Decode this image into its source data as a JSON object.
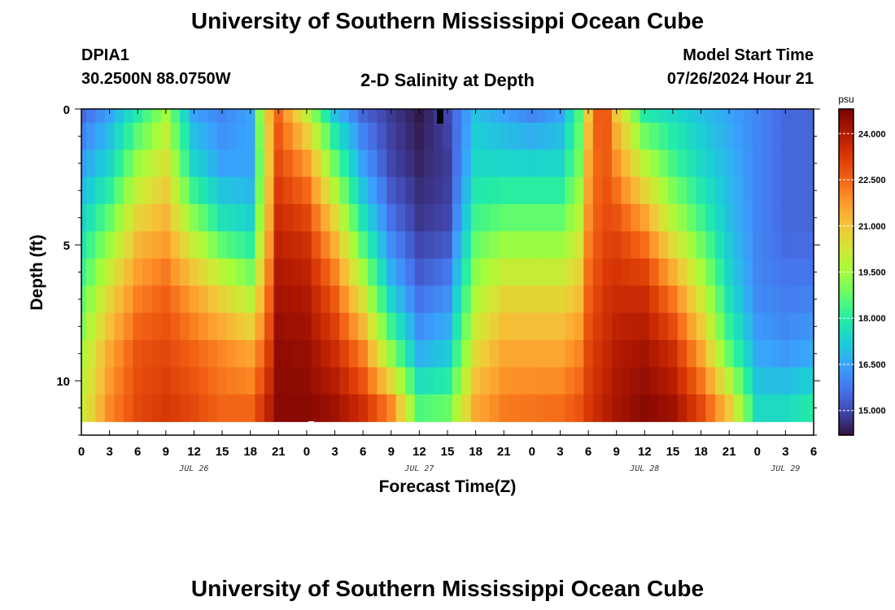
{
  "page": {
    "title": "University of Southern Mississippi Ocean Cube",
    "footer_title": "University of Southern Mississippi Ocean Cube",
    "station": "DPIA1",
    "coords": "30.2500N  88.0750W",
    "subtitle": "2-D Salinity at Depth",
    "model_start_label": "Model Start Time",
    "model_start_value": "07/26/2024 Hour 21"
  },
  "chart_data": {
    "type": "heatmap",
    "title": "2-D Salinity at Depth",
    "xlabel": "Forecast Time(Z)",
    "ylabel": "Depth (ft)",
    "x_tick_labels": [
      "0",
      "3",
      "6",
      "9",
      "12",
      "15",
      "18",
      "21",
      "0",
      "3",
      "6",
      "9",
      "12",
      "15",
      "18",
      "21",
      "0",
      "3",
      "6",
      "9",
      "12",
      "15",
      "18",
      "21",
      "0",
      "3",
      "6"
    ],
    "x_range_hours": [
      0,
      78
    ],
    "date_labels": [
      {
        "label": "JUL 26",
        "hour": 12
      },
      {
        "label": "JUL 27",
        "hour": 36
      },
      {
        "label": "JUL 28",
        "hour": 60
      },
      {
        "label": "JUL 29",
        "hour": 75
      }
    ],
    "y_ticks": [
      0,
      5,
      10
    ],
    "y_range_ft": [
      0,
      12
    ],
    "y_reversed": true,
    "colorbar": {
      "unit": "psu",
      "range": [
        14.2,
        24.8
      ],
      "ticks": [
        "24.000",
        "22.500",
        "21.000",
        "19.500",
        "18.000",
        "16.500",
        "15.000"
      ],
      "tick_values": [
        24.0,
        22.5,
        21.0,
        19.5,
        18.0,
        16.5,
        15.0
      ],
      "colormap": [
        "#30123b",
        "#4145ab",
        "#4675ed",
        "#39a2fc",
        "#1bcfd4",
        "#24eca6",
        "#61fc6c",
        "#a4fc3b",
        "#d1e834",
        "#f3c63a",
        "#fe9b2d",
        "#f36315",
        "#d93806",
        "#b11901",
        "#7a0403"
      ]
    },
    "depths_ft": [
      0,
      1,
      2,
      3,
      4,
      5,
      6,
      7,
      8,
      9,
      10,
      11
    ],
    "keyframes_hours": [
      0,
      3,
      6,
      9,
      12,
      15,
      18,
      19.5,
      21,
      24,
      27,
      30,
      33,
      36,
      39,
      42,
      45,
      48,
      51,
      53,
      54,
      55.5,
      57,
      60,
      63,
      66,
      69,
      72,
      75,
      78
    ],
    "keyframe_profiles_psu_surface_to_bottom": [
      [
        15.5,
        16.5,
        17.5,
        18.5,
        19.5,
        20.0
      ],
      [
        16.5,
        17.5,
        19.0,
        20.5,
        21.5,
        22.0
      ],
      [
        18.0,
        19.5,
        21.0,
        22.0,
        22.8,
        23.0
      ],
      [
        19.5,
        20.5,
        21.5,
        22.5,
        23.0,
        23.3
      ],
      [
        16.5,
        17.5,
        19.5,
        21.5,
        22.5,
        23.0
      ],
      [
        16.0,
        16.5,
        18.0,
        20.5,
        22.0,
        22.5
      ],
      [
        16.5,
        16.5,
        17.5,
        19.5,
        21.5,
        22.5
      ],
      [
        20.5,
        20.0,
        20.5,
        21.5,
        22.5,
        23.5
      ],
      [
        22.5,
        23.0,
        23.7,
        24.2,
        24.5,
        24.6
      ],
      [
        20.0,
        22.0,
        23.3,
        24.0,
        24.4,
        24.6
      ],
      [
        17.0,
        19.0,
        21.0,
        22.5,
        23.5,
        24.3
      ],
      [
        15.5,
        16.5,
        18.0,
        20.0,
        22.0,
        23.5
      ],
      [
        14.8,
        15.0,
        15.8,
        17.0,
        19.0,
        22.0
      ],
      [
        14.3,
        14.5,
        14.8,
        15.5,
        16.5,
        18.5
      ],
      [
        15.0,
        14.8,
        15.0,
        16.0,
        17.0,
        18.8
      ],
      [
        17.0,
        17.5,
        18.5,
        19.5,
        20.5,
        21.5
      ],
      [
        16.5,
        17.5,
        19.0,
        20.5,
        21.5,
        22.2
      ],
      [
        16.0,
        17.5,
        19.0,
        20.5,
        21.5,
        22.3
      ],
      [
        16.5,
        17.5,
        19.0,
        20.5,
        21.5,
        22.4
      ],
      [
        18.5,
        19.0,
        20.0,
        21.0,
        22.0,
        22.8
      ],
      [
        21.0,
        21.5,
        22.0,
        22.5,
        23.0,
        23.3
      ],
      [
        23.5,
        23.0,
        23.0,
        23.3,
        23.5,
        23.8
      ],
      [
        21.0,
        22.0,
        23.0,
        23.5,
        24.0,
        24.2
      ],
      [
        18.0,
        20.0,
        22.0,
        23.5,
        24.2,
        24.6
      ],
      [
        17.5,
        18.5,
        20.0,
        22.0,
        23.5,
        24.3
      ],
      [
        17.0,
        17.5,
        18.5,
        20.0,
        21.5,
        23.0
      ],
      [
        16.5,
        16.8,
        17.0,
        17.5,
        18.5,
        21.0
      ],
      [
        16.0,
        16.0,
        16.0,
        16.0,
        16.5,
        17.5
      ],
      [
        15.5,
        15.5,
        15.5,
        15.8,
        16.2,
        17.5
      ],
      [
        15.5,
        15.5,
        15.5,
        15.8,
        16.5,
        18.0
      ]
    ]
  }
}
